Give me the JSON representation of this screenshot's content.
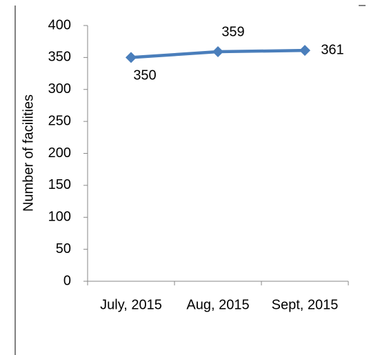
{
  "chart_data": {
    "type": "line",
    "y_label": "Number of facilities",
    "categories": [
      "July, 2015",
      "Aug, 2015",
      "Sept, 2015"
    ],
    "series": [
      {
        "name": "Number of facilities",
        "color": "#4a7ebb",
        "values": [
          350,
          359,
          361
        ]
      }
    ],
    "ylim": [
      0,
      400
    ],
    "yticks": [
      0,
      50,
      100,
      150,
      200,
      250,
      300,
      350,
      400
    ],
    "data_labels": true
  }
}
